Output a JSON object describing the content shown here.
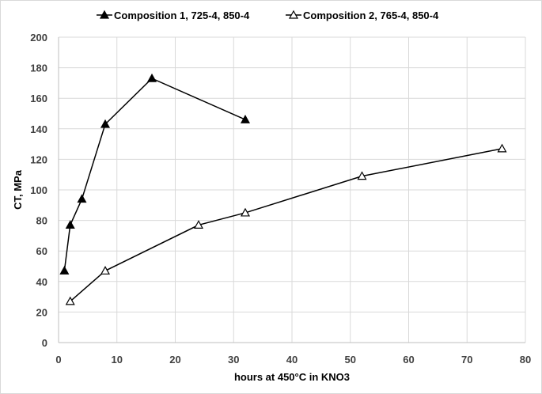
{
  "chart_data": {
    "type": "line",
    "title": "",
    "xlabel": "hours at 450°C in KNO3",
    "ylabel": "CT, MPa",
    "xlim": [
      0,
      80
    ],
    "ylim": [
      0,
      200
    ],
    "x_ticks": [
      0,
      10,
      20,
      30,
      40,
      50,
      60,
      70,
      80
    ],
    "y_ticks": [
      0,
      20,
      40,
      60,
      80,
      100,
      120,
      140,
      160,
      180,
      200
    ],
    "grid": true,
    "legend_position": "top",
    "series": [
      {
        "name": "Composition 1, 725-4, 850-4",
        "marker": "filled-triangle",
        "color": "#000000",
        "x": [
          1,
          2,
          4,
          8,
          16,
          32
        ],
        "y": [
          47,
          77,
          94,
          143,
          173,
          146
        ]
      },
      {
        "name": "Composition 2, 765-4, 850-4",
        "marker": "open-triangle",
        "color": "#000000",
        "x": [
          2,
          8,
          24,
          32,
          52,
          76
        ],
        "y": [
          27,
          47,
          77,
          85,
          109,
          127
        ]
      }
    ]
  },
  "colors": {
    "grid": "#d9d9d9",
    "axis": "#bfbfbf",
    "line": "#000000"
  }
}
